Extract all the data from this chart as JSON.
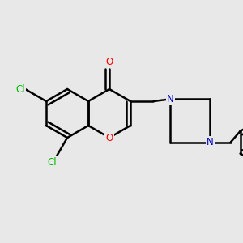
{
  "bg_color": "#e8e8e8",
  "bond_color": "#000000",
  "bond_width": 1.8,
  "atom_colors": {
    "O": "#ff0000",
    "N": "#0000cc",
    "Cl": "#00bb00",
    "C": "#000000"
  },
  "font_size": 8.5,
  "figsize": [
    3.0,
    3.0
  ],
  "dpi": 100
}
